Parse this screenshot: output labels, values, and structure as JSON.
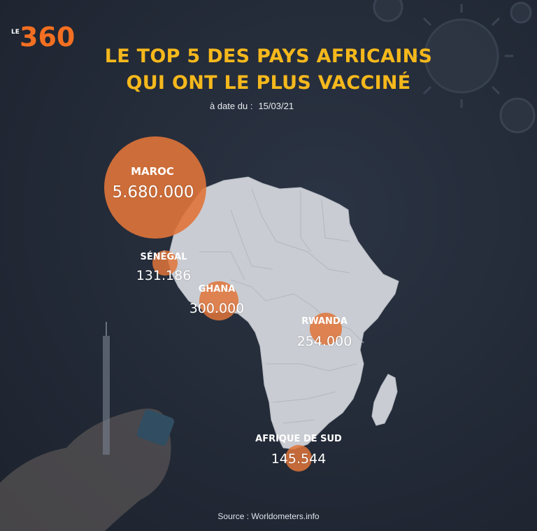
{
  "logo": {
    "prefix": "LE",
    "number": "360"
  },
  "title": {
    "line1": "LE TOP 5 DES PAYS AFRICAINS",
    "line2": "QUI ONT LE PLUS VACCINÉ"
  },
  "date": {
    "label": "à date du  :",
    "value": "15/03/21"
  },
  "source": "Source : Worldometers.info",
  "colors": {
    "title": "#f5b81c",
    "bubble": "#e0743a",
    "land": "#c9ccd2",
    "background": "#232a37",
    "logo": "#f36f21"
  },
  "countries": [
    {
      "name": "MAROC",
      "value": "5.680.000"
    },
    {
      "name": "SÉNÉGAL",
      "value": "131.186"
    },
    {
      "name": "GHANA",
      "value": "300.000"
    },
    {
      "name": "RWANDA",
      "value": "254.000"
    },
    {
      "name": "AFRIQUE DE SUD",
      "value": "145.544"
    }
  ],
  "decorations": [
    "virus-icon",
    "syringe-icon",
    "vaccine-vial-icon",
    "hand-icon"
  ]
}
